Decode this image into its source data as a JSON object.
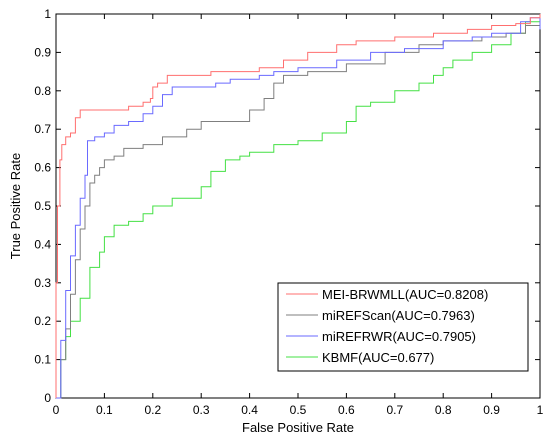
{
  "chart_data": {
    "type": "line",
    "title": "",
    "xlabel": "False Positive Rate",
    "ylabel": "True Positive Rate",
    "xlim": [
      0,
      1
    ],
    "ylim": [
      0,
      1
    ],
    "xticks": [
      "0",
      "0.1",
      "0.2",
      "0.3",
      "0.4",
      "0.5",
      "0.6",
      "0.7",
      "0.8",
      "0.9",
      "1"
    ],
    "yticks": [
      "0",
      "0.1",
      "0.2",
      "0.3",
      "0.4",
      "0.5",
      "0.6",
      "0.7",
      "0.8",
      "0.9",
      "1"
    ],
    "grid": false,
    "legend_position": "bottom-right",
    "series": [
      {
        "name": "MEI-BRWMLL(AUC=0.8208)",
        "color": "#ff6f6f",
        "points": [
          [
            0,
            0
          ],
          [
            0,
            0.3
          ],
          [
            0.003,
            0.5
          ],
          [
            0.008,
            0.62
          ],
          [
            0.012,
            0.66
          ],
          [
            0.02,
            0.68
          ],
          [
            0.03,
            0.69
          ],
          [
            0.04,
            0.73
          ],
          [
            0.05,
            0.75
          ],
          [
            0.1,
            0.75
          ],
          [
            0.13,
            0.75
          ],
          [
            0.15,
            0.76
          ],
          [
            0.18,
            0.77
          ],
          [
            0.195,
            0.78
          ],
          [
            0.2,
            0.81
          ],
          [
            0.21,
            0.82
          ],
          [
            0.23,
            0.84
          ],
          [
            0.28,
            0.84
          ],
          [
            0.32,
            0.85
          ],
          [
            0.42,
            0.86
          ],
          [
            0.47,
            0.88
          ],
          [
            0.52,
            0.9
          ],
          [
            0.58,
            0.92
          ],
          [
            0.62,
            0.93
          ],
          [
            0.7,
            0.94
          ],
          [
            0.78,
            0.95
          ],
          [
            0.85,
            0.96
          ],
          [
            0.9,
            0.97
          ],
          [
            0.95,
            0.975
          ],
          [
            0.98,
            0.99
          ],
          [
            1,
            1
          ]
        ]
      },
      {
        "name": "miREFScan(AUC=0.7963)",
        "color": "#7f7f7f",
        "points": [
          [
            0,
            0
          ],
          [
            0.01,
            0.1
          ],
          [
            0.02,
            0.18
          ],
          [
            0.03,
            0.27
          ],
          [
            0.04,
            0.36
          ],
          [
            0.05,
            0.44
          ],
          [
            0.06,
            0.5
          ],
          [
            0.07,
            0.56
          ],
          [
            0.08,
            0.58
          ],
          [
            0.09,
            0.6
          ],
          [
            0.1,
            0.62
          ],
          [
            0.12,
            0.63
          ],
          [
            0.14,
            0.65
          ],
          [
            0.18,
            0.66
          ],
          [
            0.22,
            0.68
          ],
          [
            0.27,
            0.7
          ],
          [
            0.3,
            0.72
          ],
          [
            0.35,
            0.72
          ],
          [
            0.4,
            0.75
          ],
          [
            0.43,
            0.78
          ],
          [
            0.45,
            0.82
          ],
          [
            0.47,
            0.84
          ],
          [
            0.52,
            0.85
          ],
          [
            0.6,
            0.87
          ],
          [
            0.68,
            0.9
          ],
          [
            0.75,
            0.92
          ],
          [
            0.8,
            0.93
          ],
          [
            0.88,
            0.94
          ],
          [
            0.93,
            0.95
          ],
          [
            0.97,
            0.97
          ],
          [
            1,
            0.98
          ]
        ]
      },
      {
        "name": "miREFRWR(AUC=0.7905)",
        "color": "#6a6aff",
        "points": [
          [
            0,
            0
          ],
          [
            0.01,
            0.15
          ],
          [
            0.02,
            0.28
          ],
          [
            0.03,
            0.37
          ],
          [
            0.04,
            0.45
          ],
          [
            0.05,
            0.52
          ],
          [
            0.06,
            0.58
          ],
          [
            0.065,
            0.67
          ],
          [
            0.08,
            0.68
          ],
          [
            0.1,
            0.69
          ],
          [
            0.12,
            0.71
          ],
          [
            0.15,
            0.72
          ],
          [
            0.18,
            0.74
          ],
          [
            0.2,
            0.76
          ],
          [
            0.22,
            0.79
          ],
          [
            0.24,
            0.81
          ],
          [
            0.3,
            0.81
          ],
          [
            0.33,
            0.82
          ],
          [
            0.36,
            0.83
          ],
          [
            0.42,
            0.84
          ],
          [
            0.45,
            0.85
          ],
          [
            0.5,
            0.86
          ],
          [
            0.58,
            0.88
          ],
          [
            0.65,
            0.9
          ],
          [
            0.72,
            0.91
          ],
          [
            0.8,
            0.93
          ],
          [
            0.86,
            0.94
          ],
          [
            0.9,
            0.95
          ],
          [
            0.96,
            0.98
          ],
          [
            0.98,
            0.99
          ],
          [
            1,
            0.96
          ]
        ]
      },
      {
        "name": "KBMF(AUC=0.677)",
        "color": "#44e044",
        "points": [
          [
            0,
            0
          ],
          [
            0.01,
            0.1
          ],
          [
            0.02,
            0.16
          ],
          [
            0.03,
            0.2
          ],
          [
            0.05,
            0.26
          ],
          [
            0.07,
            0.34
          ],
          [
            0.09,
            0.38
          ],
          [
            0.1,
            0.42
          ],
          [
            0.12,
            0.45
          ],
          [
            0.15,
            0.46
          ],
          [
            0.18,
            0.48
          ],
          [
            0.2,
            0.5
          ],
          [
            0.24,
            0.52
          ],
          [
            0.3,
            0.55
          ],
          [
            0.32,
            0.59
          ],
          [
            0.35,
            0.62
          ],
          [
            0.38,
            0.63
          ],
          [
            0.4,
            0.64
          ],
          [
            0.45,
            0.66
          ],
          [
            0.5,
            0.67
          ],
          [
            0.55,
            0.69
          ],
          [
            0.6,
            0.72
          ],
          [
            0.62,
            0.76
          ],
          [
            0.65,
            0.77
          ],
          [
            0.7,
            0.8
          ],
          [
            0.75,
            0.82
          ],
          [
            0.78,
            0.84
          ],
          [
            0.8,
            0.86
          ],
          [
            0.82,
            0.88
          ],
          [
            0.86,
            0.9
          ],
          [
            0.9,
            0.92
          ],
          [
            0.94,
            0.95
          ],
          [
            0.97,
            0.98
          ],
          [
            1,
            1
          ]
        ]
      }
    ]
  }
}
